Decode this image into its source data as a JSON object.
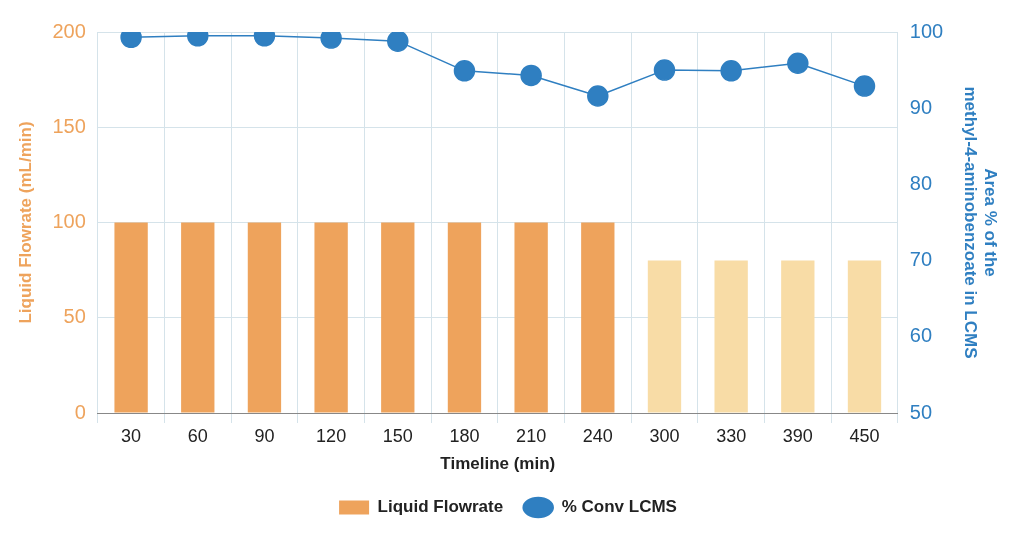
{
  "chart_data": {
    "type": "bar",
    "xlabel": "Timeline (min)",
    "ylabel": "Liquid Flowrate (mL/min)",
    "y2label": "Area % of the\nmethyl-4-aminobenzoate in LCMS",
    "categories": [
      "30",
      "60",
      "90",
      "120",
      "150",
      "180",
      "210",
      "240",
      "300",
      "330",
      "390",
      "450"
    ],
    "series": [
      {
        "name": "Liquid Flowrate",
        "color": "#eea35c",
        "colors": [
          "#eea35c",
          "#eea35c",
          "#eea35c",
          "#eea35c",
          "#eea35c",
          "#eea35c",
          "#eea35c",
          "#eea35c",
          "#f8dca6",
          "#f8dca6",
          "#f8dca6",
          "#f8dca6"
        ],
        "values": [
          100,
          100,
          100,
          100,
          100,
          100,
          100,
          100,
          80,
          80,
          80,
          80
        ]
      },
      {
        "name": "% Conv LCMS",
        "type": "line",
        "axis": "y2",
        "color": "#2f7fc1",
        "marker": "circle",
        "values": [
          99.3,
          99.5,
          99.5,
          99.2,
          98.8,
          94.9,
          94.3,
          91.6,
          95.0,
          94.9,
          95.9,
          92.9
        ]
      }
    ],
    "ylim": [
      0,
      200
    ],
    "yticks": [
      0,
      50,
      100,
      150,
      200
    ],
    "y2lim": [
      50,
      100
    ],
    "y2ticks": [
      50,
      60,
      70,
      80,
      90,
      100
    ],
    "grid": true,
    "legend": "bottom"
  }
}
